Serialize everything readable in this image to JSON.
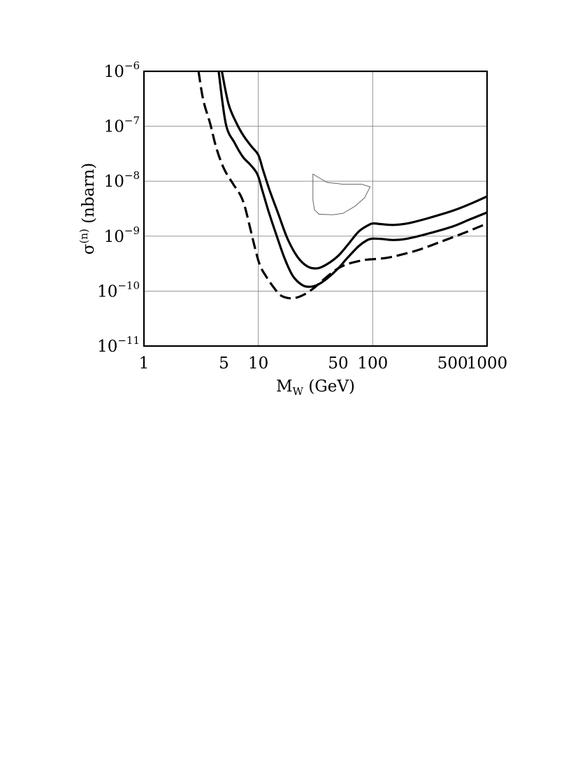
{
  "chart_data": {
    "type": "line",
    "xscale": "log",
    "yscale": "log",
    "xlim": [
      1,
      1000
    ],
    "ylim": [
      1e-11,
      1e-06
    ],
    "grid": true,
    "xlabel_main": "M",
    "xlabel_sub": "W",
    "xlabel_rest": " (GeV)",
    "ylabel_sym": "σ",
    "ylabel_sup": "(n)",
    "ylabel_rest": " (nbarn)",
    "x_ticks": [
      {
        "value": 1,
        "label": "1"
      },
      {
        "value": 5,
        "label": "5"
      },
      {
        "value": 10,
        "label": "10"
      },
      {
        "value": 50,
        "label": "50"
      },
      {
        "value": 100,
        "label": "100"
      },
      {
        "value": 500,
        "label": "500"
      },
      {
        "value": 1000,
        "label": "1000"
      }
    ],
    "y_ticks": [
      {
        "value": 1e-06,
        "base": "10",
        "exp": "−6"
      },
      {
        "value": 1e-07,
        "base": "10",
        "exp": "−7"
      },
      {
        "value": 1e-08,
        "base": "10",
        "exp": "−8"
      },
      {
        "value": 1e-09,
        "base": "10",
        "exp": "−9"
      },
      {
        "value": 1e-10,
        "base": "10",
        "exp": "−10"
      },
      {
        "value": 1e-11,
        "base": "10",
        "exp": "−11"
      }
    ],
    "grid_x": [
      10,
      100
    ],
    "grid_y": [
      1e-07,
      1e-08,
      1e-09,
      1e-10
    ],
    "series": [
      {
        "style": "solid",
        "x": [
          4.8,
          5.5,
          6.5,
          7.5,
          8.7,
          10.0,
          11.0,
          12.5,
          15,
          18,
          22,
          27,
          33,
          40,
          50,
          60,
          75,
          90,
          100,
          120,
          150,
          200,
          300,
          500,
          700,
          1000
        ],
        "y": [
          1e-06,
          2.5e-07,
          1.1e-07,
          6.5e-08,
          4.3e-08,
          3e-08,
          1.6e-08,
          7e-09,
          2.5e-09,
          9e-10,
          4.2e-10,
          2.8e-10,
          2.6e-10,
          3.1e-10,
          4.4e-10,
          6.8e-10,
          1.2e-09,
          1.55e-09,
          1.7e-09,
          1.65e-09,
          1.6e-09,
          1.7e-09,
          2.1e-09,
          2.9e-09,
          3.8e-09,
          5.3e-09
        ]
      },
      {
        "style": "solid",
        "x": [
          4.5,
          5.2,
          6.2,
          7.3,
          8.5,
          9.8,
          10.8,
          12.3,
          14.5,
          17,
          20,
          24,
          28,
          33,
          40,
          50,
          60,
          75,
          90,
          100,
          120,
          150,
          200,
          300,
          500,
          700,
          1000
        ],
        "y": [
          1e-06,
          1.1e-07,
          5e-08,
          2.8e-08,
          2e-08,
          1.35e-08,
          7e-09,
          2.8e-09,
          1e-09,
          3.9e-10,
          1.9e-10,
          1.3e-10,
          1.2e-10,
          1.3e-10,
          1.7e-10,
          2.6e-10,
          4e-10,
          6.5e-10,
          8.5e-10,
          9e-10,
          8.9e-10,
          8.5e-10,
          9e-10,
          1.1e-09,
          1.5e-09,
          2e-09,
          2.7e-09
        ]
      },
      {
        "style": "dashed",
        "x": [
          3.0,
          3.3,
          3.8,
          4.3,
          5.0,
          6.0,
          7.0,
          7.6,
          8.3,
          9.2,
          10.3,
          11.8,
          13.5,
          15.5,
          18,
          21,
          25,
          30,
          35,
          42,
          50,
          60,
          75,
          90,
          100,
          130,
          170,
          250,
          400,
          600,
          800,
          1000
        ],
        "y": [
          1e-06,
          3e-07,
          1.1e-07,
          4e-08,
          1.7e-08,
          9e-09,
          5.5e-09,
          3.5e-09,
          1.7e-09,
          7e-10,
          3e-10,
          1.8e-10,
          1.2e-10,
          8.5e-11,
          7.5e-11,
          7.5e-11,
          8.6e-11,
          1.1e-10,
          1.45e-10,
          2e-10,
          2.6e-10,
          3.1e-10,
          3.5e-10,
          3.75e-10,
          3.8e-10,
          4e-10,
          4.5e-10,
          5.6e-10,
          8e-10,
          1.1e-09,
          1.4e-09,
          1.7e-09
        ]
      }
    ],
    "region": {
      "x": [
        30,
        34,
        40,
        55,
        80,
        95,
        85,
        70,
        55,
        45,
        34,
        31,
        30,
        30
      ],
      "y": [
        1.35e-08,
        1.15e-08,
        9.5e-09,
        8.8e-09,
        8.8e-09,
        7.9e-09,
        5e-09,
        3.5e-09,
        2.6e-09,
        2.45e-09,
        2.5e-09,
        3e-09,
        4.5e-09,
        1.35e-08
      ]
    }
  }
}
